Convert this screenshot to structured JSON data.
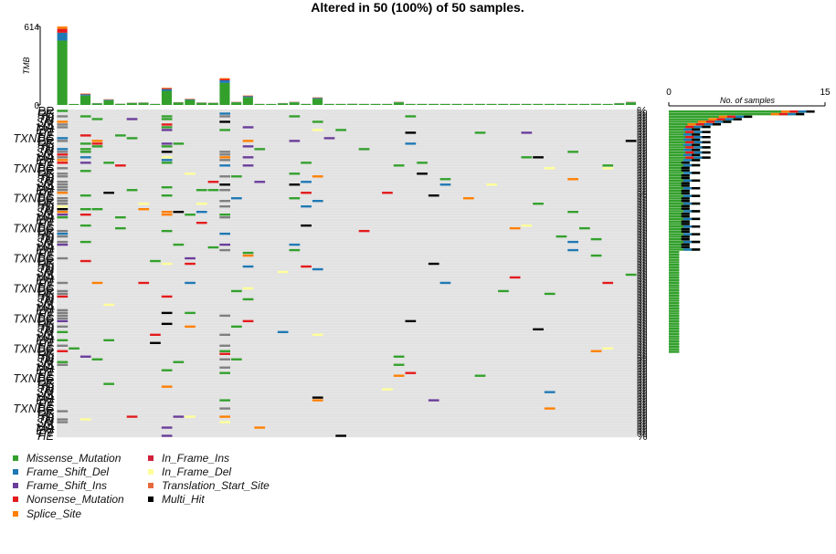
{
  "chart_data": {
    "type": "heatmap",
    "title": "Altered in 50 (100%) of 50 samples.",
    "tmb": {
      "ylabel": "TMB",
      "ylim": [
        0,
        614
      ],
      "y_ticks": [
        "614",
        "0"
      ],
      "values": [
        614,
        3,
        90,
        15,
        45,
        10,
        18,
        20,
        8,
        135,
        22,
        48,
        20,
        18,
        210,
        25,
        75,
        8,
        5,
        15,
        25,
        8,
        60,
        8,
        8,
        10,
        8,
        8,
        8,
        25,
        8,
        8,
        8,
        8,
        8,
        8,
        8,
        8,
        8,
        8,
        8,
        8,
        8,
        8,
        8,
        8,
        10,
        5,
        15,
        25
      ]
    },
    "gene_frequency": {
      "xlabel": "No. of samples",
      "xlim": [
        0,
        15
      ],
      "x_ticks": [
        "0",
        "15"
      ]
    },
    "n_samples": 50,
    "n_genes": 120
  },
  "colors": {
    "background": "#e2e2e2",
    "Missense_Mutation": "#33a02c",
    "Frame_Shift_Del": "#1f78b4",
    "Frame_Shift_Ins": "#6a3d9a",
    "Nonsense_Mutation": "#e31a1c",
    "Splice_Site": "#ff7f00",
    "In_Frame_Ins": "#d1203a",
    "In_Frame_Del": "#ffff99",
    "Translation_Start_Site": "#e6693e",
    "Multi_Hit": "#000000"
  },
  "legend": [
    {
      "label": "Missense_Mutation",
      "color": "#33a02c"
    },
    {
      "label": "Frame_Shift_Del",
      "color": "#1f78b4"
    },
    {
      "label": "Frame_Shift_Ins",
      "color": "#6a3d9a"
    },
    {
      "label": "Nonsense_Mutation",
      "color": "#e31a1c"
    },
    {
      "label": "Splice_Site",
      "color": "#ff7f00"
    },
    {
      "label": "In_Frame_Ins",
      "color": "#d1203a"
    },
    {
      "label": "In_Frame_Del",
      "color": "#ffff99"
    },
    {
      "label": "Translation_Start_Site",
      "color": "#e6693e"
    },
    {
      "label": "Multi_Hit",
      "color": "#000000"
    }
  ],
  "gene_labels_visible": [
    "PR",
    "RE",
    "NI",
    "TN",
    "SM",
    "IS",
    "MA",
    "EM",
    "PT",
    "HE",
    "TXNDC"
  ]
}
